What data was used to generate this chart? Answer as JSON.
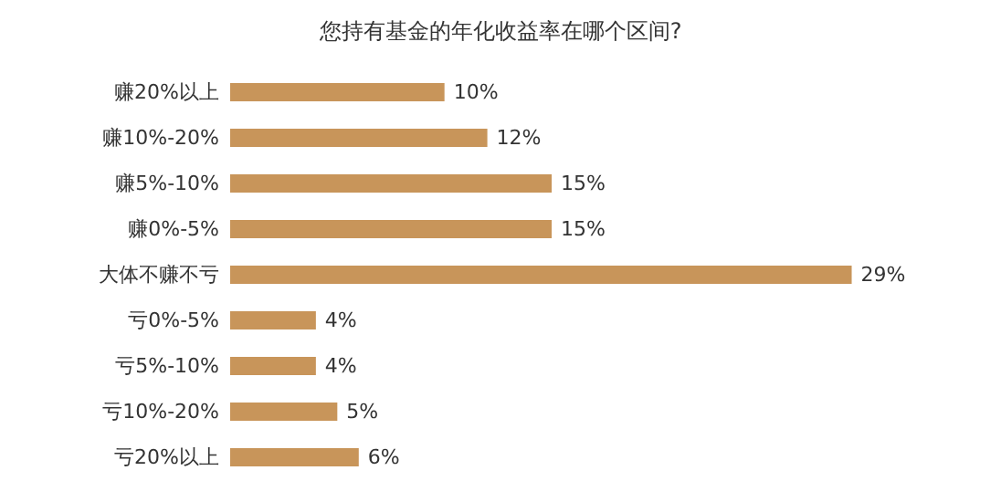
{
  "chart_data": {
    "type": "bar",
    "orientation": "horizontal",
    "title": "您持有基金的年化收益率在哪个区间?",
    "categories": [
      "赚20%以上",
      "赚10%-20%",
      "赚5%-10%",
      "赚0%-5%",
      "大体不赚不亏",
      "亏0%-5%",
      "亏5%-10%",
      "亏10%-20%",
      "亏20%以上"
    ],
    "values": [
      10,
      12,
      15,
      15,
      29,
      4,
      4,
      5,
      6
    ],
    "value_labels": [
      "10%",
      "12%",
      "15%",
      "15%",
      "29%",
      "4%",
      "4%",
      "5%",
      "6%"
    ],
    "color": "#c8955a"
  }
}
